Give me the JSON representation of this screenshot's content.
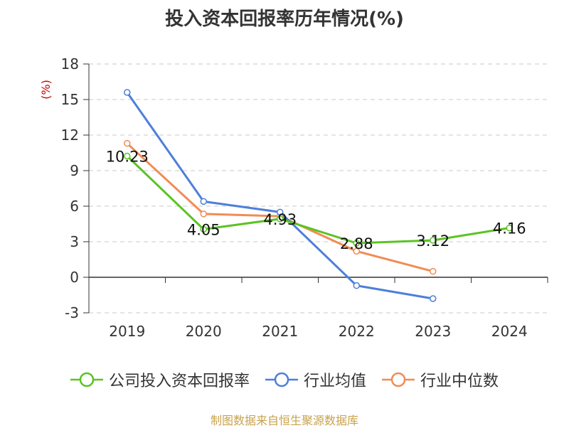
{
  "source_note": "制图数据来自恒生聚源数据库",
  "chart_data": {
    "type": "line",
    "title": "投入资本回报率历年情况(%)",
    "ylabel": "(%)",
    "xlabel": "",
    "categories": [
      "2019",
      "2020",
      "2021",
      "2022",
      "2023",
      "2024"
    ],
    "ylim": [
      -3,
      18
    ],
    "yticks": [
      -3,
      0,
      3,
      6,
      9,
      12,
      15,
      18
    ],
    "grid": true,
    "legend_position": "bottom",
    "series": [
      {
        "name": "公司投入资本回报率",
        "color": "#5bc322",
        "values": [
          10.23,
          4.05,
          4.93,
          2.88,
          3.12,
          4.16
        ],
        "labels": [
          "10.23",
          "4.05",
          "4.93",
          "2.88",
          "3.12",
          "4.16"
        ]
      },
      {
        "name": "行业均值",
        "color": "#4e7fd9",
        "values": [
          15.6,
          6.4,
          5.5,
          -0.7,
          -1.8,
          null
        ]
      },
      {
        "name": "行业中位数",
        "color": "#f08c55",
        "values": [
          11.3,
          5.35,
          5.15,
          2.2,
          0.5,
          null
        ]
      }
    ]
  }
}
